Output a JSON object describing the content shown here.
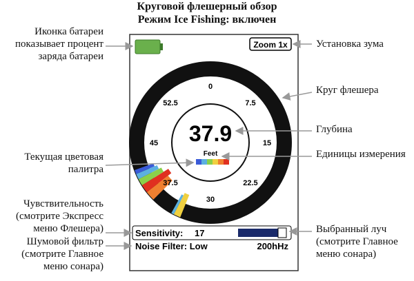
{
  "header": {
    "title": "Круговой флешерный обзор",
    "subtitle": "Режим Ice Fishing: включен"
  },
  "callouts": {
    "left": [
      {
        "lines": [
          "Иконка батареи",
          "показывает процент",
          "заряда батареи"
        ]
      },
      {
        "lines": [
          "Текущая цветовая",
          "палитра"
        ]
      },
      {
        "lines": [
          "Чувствительность",
          "(смотрите Экспресс",
          "меню Флешера)"
        ]
      },
      {
        "lines": [
          "Шумовой фильтр",
          "(смотрите Главное",
          "меню сонара)"
        ]
      }
    ],
    "right": [
      {
        "lines": [
          "Установка зума"
        ]
      },
      {
        "lines": [
          "Круг флешера"
        ]
      },
      {
        "lines": [
          "Глубина"
        ]
      },
      {
        "lines": [
          "Единицы измерения"
        ]
      },
      {
        "lines": [
          "Выбранный луч",
          "(смотрите Главное",
          "меню сонара)"
        ]
      }
    ]
  },
  "screen": {
    "zoom": "Zoom 1x",
    "dial_labels": [
      "0",
      "7.5",
      "15",
      "22.5",
      "30",
      "37.5",
      "45",
      "52.5"
    ],
    "depth": "37.9",
    "units": "Feet",
    "sensitivity": {
      "label": "Sensitivity:",
      "value": "17"
    },
    "noise_filter": "Noise Filter: Low",
    "beam": "200hHz"
  }
}
